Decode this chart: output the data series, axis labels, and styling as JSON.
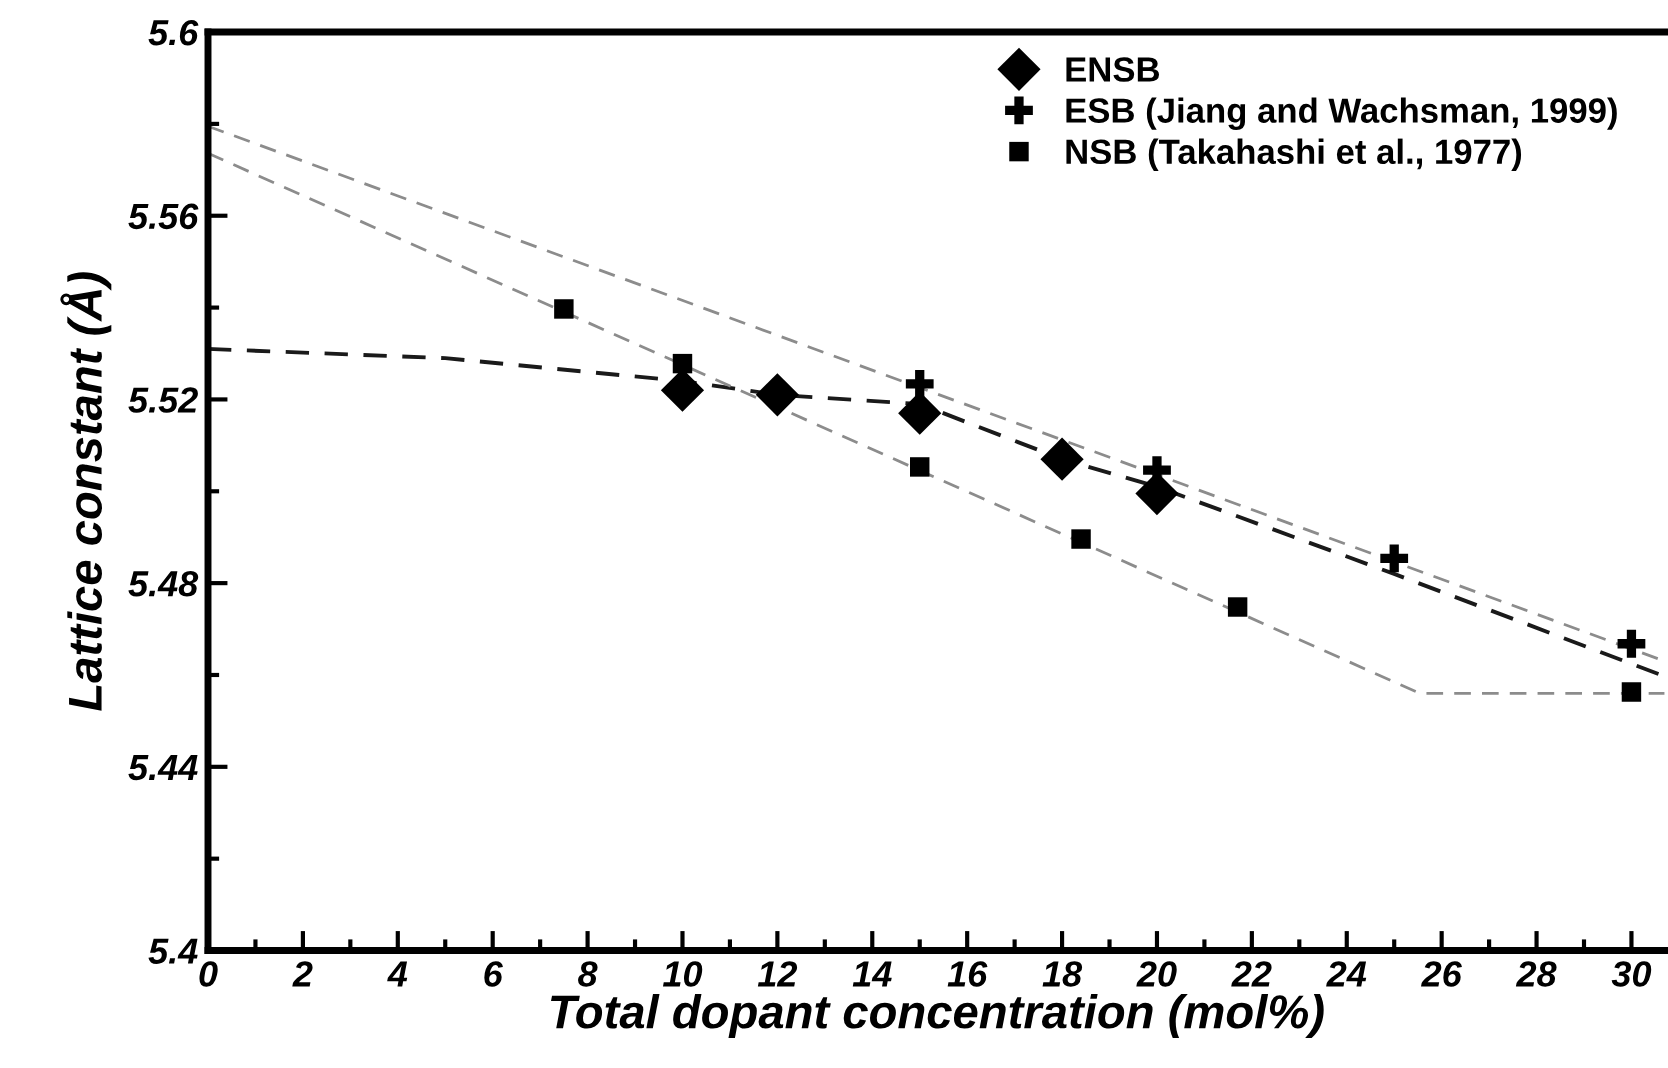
{
  "chart_data": {
    "type": "scatter",
    "xlabel": "Total dopant concentration (mol%)",
    "ylabel": "Lattice constant (Å)",
    "xlim": [
      0,
      30.7
    ],
    "ylim": [
      5.4,
      5.6
    ],
    "xticks": [
      0,
      2,
      4,
      6,
      8,
      10,
      12,
      14,
      16,
      18,
      20,
      22,
      24,
      26,
      28,
      30
    ],
    "yticks": [
      5.4,
      5.44,
      5.48,
      5.52,
      5.56,
      5.6
    ],
    "grid": false,
    "legend": "top right",
    "series": [
      {
        "name": "ENSB",
        "marker": "diamond",
        "color": "#000000",
        "x": [
          10,
          12,
          15,
          18,
          20
        ],
        "values": [
          5.522,
          5.521,
          5.517,
          5.507,
          5.4995
        ]
      },
      {
        "name": "ESB (Jiang and Wachsman, 1999)",
        "marker": "cross",
        "color": "#000000",
        "x": [
          15,
          20,
          25,
          30
        ],
        "values": [
          5.5234,
          5.5046,
          5.4854,
          5.4668
        ]
      },
      {
        "name": "NSB (Takahashi et al., 1977)",
        "marker": "square",
        "color": "#000000",
        "x": [
          7.5,
          10,
          15,
          18.4,
          21.7,
          30
        ],
        "values": [
          5.5397,
          5.5278,
          5.5053,
          5.4896,
          5.4748,
          5.4563
        ]
      },
      {
        "type": "line",
        "line_style": "dashed",
        "color": "#1a1a1a",
        "x": [
          0,
          5,
          10,
          12,
          15,
          18,
          20,
          25,
          30.7
        ],
        "values": [
          5.531,
          5.529,
          5.524,
          5.521,
          5.519,
          5.507,
          5.501,
          5.482,
          5.4597
        ]
      },
      {
        "type": "line",
        "line_style": "dashed",
        "color": "#8c8c8c",
        "x": [
          0,
          30.7
        ],
        "values": [
          5.5795,
          5.463
        ]
      },
      {
        "type": "line",
        "line_style": "dashed",
        "color": "#8c8c8c",
        "x": [
          0,
          25.54,
          30.7
        ],
        "values": [
          5.5736,
          5.456,
          5.456
        ]
      }
    ]
  }
}
